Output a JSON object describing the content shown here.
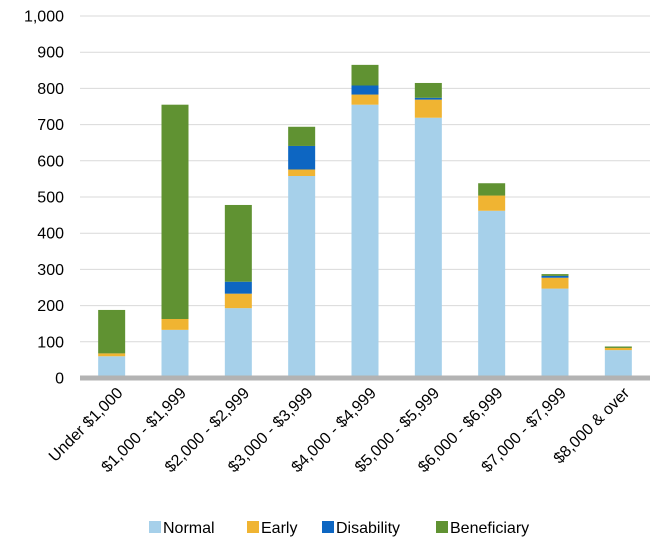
{
  "chart_data": {
    "type": "bar",
    "stacked": true,
    "categories": [
      "Under $1,000",
      "$1,000 - $1,999",
      "$2,000 - $2,999",
      "$3,000 - $3,999",
      "$4,000 - $4,999",
      "$5,000 - $5,999",
      "$6,000 - $6,999",
      "$7,000 - $7,999",
      "$8,000 & over"
    ],
    "series": [
      {
        "name": "Normal",
        "color": "#a6d0ea",
        "values": [
          60,
          133,
          193,
          558,
          755,
          719,
          462,
          247,
          77
        ]
      },
      {
        "name": "Early",
        "color": "#f0b432",
        "values": [
          8,
          30,
          40,
          18,
          28,
          50,
          42,
          30,
          6
        ]
      },
      {
        "name": "Disability",
        "color": "#0d66c2",
        "values": [
          0,
          0,
          33,
          65,
          25,
          5,
          0,
          5,
          0
        ]
      },
      {
        "name": "Beneficiary",
        "color": "#609232",
        "values": [
          120,
          592,
          212,
          53,
          57,
          41,
          34,
          5,
          4
        ]
      }
    ],
    "ylim": [
      0,
      1000
    ],
    "yticks": [
      0,
      100,
      200,
      300,
      400,
      500,
      600,
      700,
      800,
      900,
      1000
    ],
    "ytick_labels": [
      "0",
      "100",
      "200",
      "300",
      "400",
      "500",
      "600",
      "700",
      "800",
      "900",
      "1,000"
    ],
    "grid": "horizontal",
    "legend_position": "bottom",
    "title": "",
    "xlabel": "",
    "ylabel": ""
  }
}
